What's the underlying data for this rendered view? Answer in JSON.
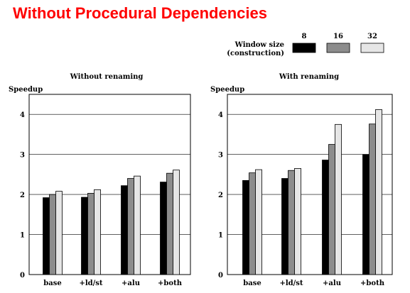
{
  "slide": {
    "title": "Without Procedural Dependencies"
  },
  "legend": {
    "title_line1": "Window size",
    "title_line2": "(construction)",
    "entries": [
      {
        "label": "8",
        "color": "#000000"
      },
      {
        "label": "16",
        "color": "#8c8c8c"
      },
      {
        "label": "32",
        "color": "#e6e6e6"
      }
    ]
  },
  "chart_data": [
    {
      "type": "bar",
      "title": "Without renaming",
      "ylabel": "Speedup",
      "ylim": [
        0,
        4.5
      ],
      "yticks": [
        0,
        1,
        2,
        3,
        4
      ],
      "categories": [
        "base",
        "+ld/st",
        "+alu",
        "+both"
      ],
      "series": [
        {
          "name": "8",
          "values": [
            1.92,
            1.93,
            2.22,
            2.31
          ]
        },
        {
          "name": "16",
          "values": [
            2.0,
            2.03,
            2.4,
            2.53
          ]
        },
        {
          "name": "32",
          "values": [
            2.08,
            2.12,
            2.46,
            2.61
          ]
        }
      ]
    },
    {
      "type": "bar",
      "title": "With renaming",
      "ylabel": "Speedup",
      "ylim": [
        0,
        4.5
      ],
      "yticks": [
        0,
        1,
        2,
        3,
        4
      ],
      "categories": [
        "base",
        "+ld/st",
        "+alu",
        "+both"
      ],
      "series": [
        {
          "name": "8",
          "values": [
            2.35,
            2.4,
            2.86,
            3.0
          ]
        },
        {
          "name": "16",
          "values": [
            2.54,
            2.6,
            3.25,
            3.76
          ]
        },
        {
          "name": "32",
          "values": [
            2.62,
            2.65,
            3.75,
            4.12
          ]
        }
      ]
    }
  ]
}
